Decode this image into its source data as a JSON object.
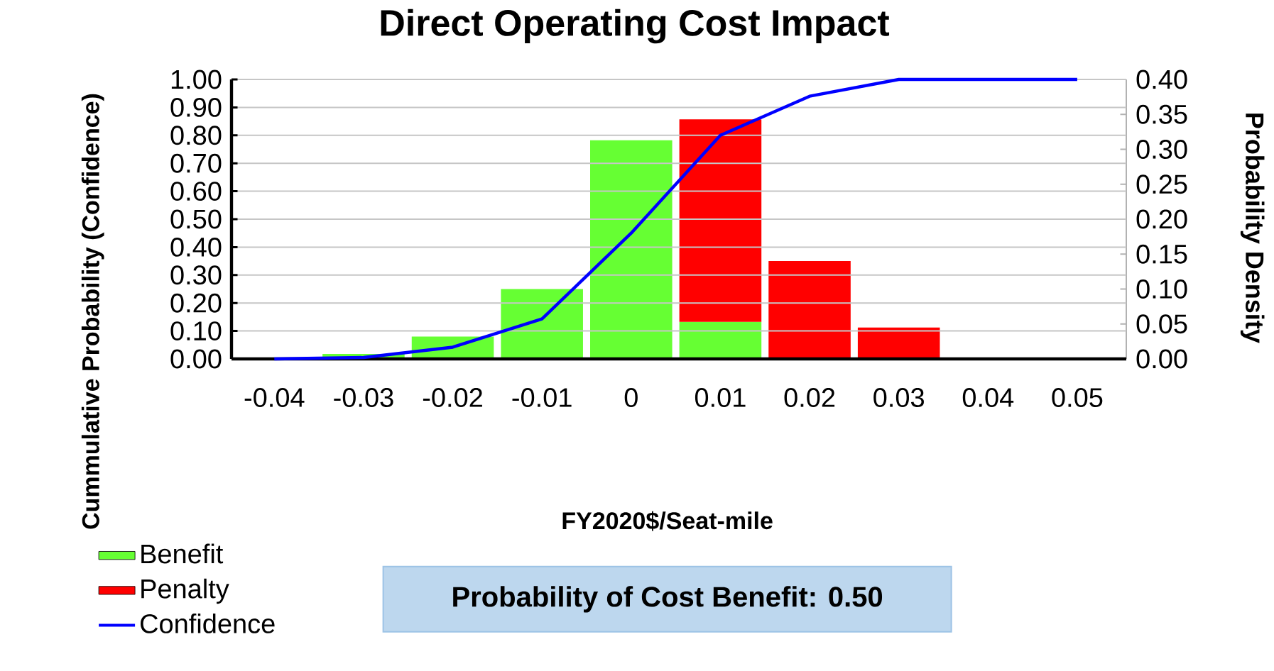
{
  "chart_data": {
    "type": "bar",
    "title": "Direct Operating Cost Impact",
    "xlabel": "FY2020$/Seat-mile",
    "ylabel": "Cummulative Probability (Confidence)",
    "y2label": "Probability Density",
    "categories": [
      "-0.04",
      "-0.03",
      "-0.02",
      "-0.01",
      "0",
      "0.01",
      "0.02",
      "0.03",
      "0.04",
      "0.05"
    ],
    "stacked": true,
    "series": [
      {
        "name": "Benefit",
        "color": "#66ff33",
        "axis": "y2",
        "values": [
          null,
          0.007,
          0.032,
          0.1,
          0.313,
          0.053,
          null,
          null,
          null,
          null
        ]
      },
      {
        "name": "Penalty",
        "color": "#ff0000",
        "axis": "y2",
        "values": [
          null,
          null,
          null,
          null,
          null,
          0.29,
          0.14,
          0.045,
          null,
          null
        ]
      },
      {
        "name": "Confidence",
        "type": "line",
        "color": "#0000ff",
        "values": [
          0,
          0.005,
          0.042,
          0.143,
          0.45,
          0.8,
          0.94,
          1,
          1,
          1
        ]
      }
    ],
    "ylim": [
      0,
      1
    ],
    "yticks": [
      {
        "value": 0,
        "label": "0.00"
      },
      {
        "value": 0.1,
        "label": "0.10"
      },
      {
        "value": 0.2,
        "label": "0.20"
      },
      {
        "value": 0.3,
        "label": "0.30"
      },
      {
        "value": 0.4,
        "label": "0.40"
      },
      {
        "value": 0.5,
        "label": "0.50"
      },
      {
        "value": 0.6,
        "label": "0.60"
      },
      {
        "value": 0.7,
        "label": "0.70"
      },
      {
        "value": 0.8,
        "label": "0.80"
      },
      {
        "value": 0.9,
        "label": "0.90"
      },
      {
        "value": 1,
        "label": "1.00"
      }
    ],
    "y2lim": [
      0,
      0.4
    ],
    "y2ticks": [
      {
        "value": 0,
        "label": "0.00"
      },
      {
        "value": 0.05,
        "label": "0.05"
      },
      {
        "value": 0.1,
        "label": "0.10"
      },
      {
        "value": 0.15,
        "label": "0.15"
      },
      {
        "value": 0.2,
        "label": "0.20"
      },
      {
        "value": 0.25,
        "label": "0.25"
      },
      {
        "value": 0.3,
        "label": "0.30"
      },
      {
        "value": 0.35,
        "label": "0.35"
      },
      {
        "value": 0.4,
        "label": "0.40"
      }
    ],
    "grid": "y",
    "legend": "bottom left",
    "annotations": [
      "Probability of Cost Benefit: 0.50"
    ]
  }
}
